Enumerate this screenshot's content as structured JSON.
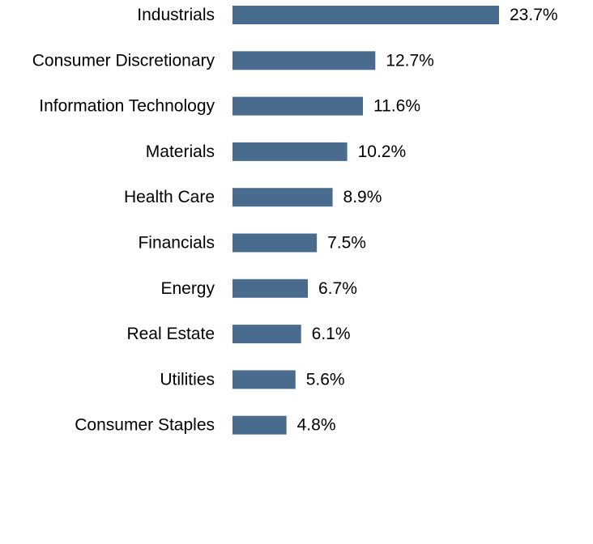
{
  "chart_data": {
    "type": "bar",
    "orientation": "horizontal",
    "categories": [
      "Industrials",
      "Consumer Discretionary",
      "Information Technology",
      "Materials",
      "Health Care",
      "Financials",
      "Energy",
      "Real Estate",
      "Utilities",
      "Consumer Staples"
    ],
    "values": [
      23.7,
      12.7,
      11.6,
      10.2,
      8.9,
      7.5,
      6.7,
      6.1,
      5.6,
      4.8
    ],
    "value_labels": [
      "23.7%",
      "12.7%",
      "11.6%",
      "10.2%",
      "8.9%",
      "7.5%",
      "6.7%",
      "6.1%",
      "5.6%",
      "4.8%"
    ],
    "unit": "%",
    "title": "",
    "xlabel": "",
    "ylabel": "",
    "xlim": [
      0,
      23.7
    ],
    "grid": false,
    "legend": "none",
    "bar_color": "#496b8e",
    "text_color": "#000000"
  }
}
